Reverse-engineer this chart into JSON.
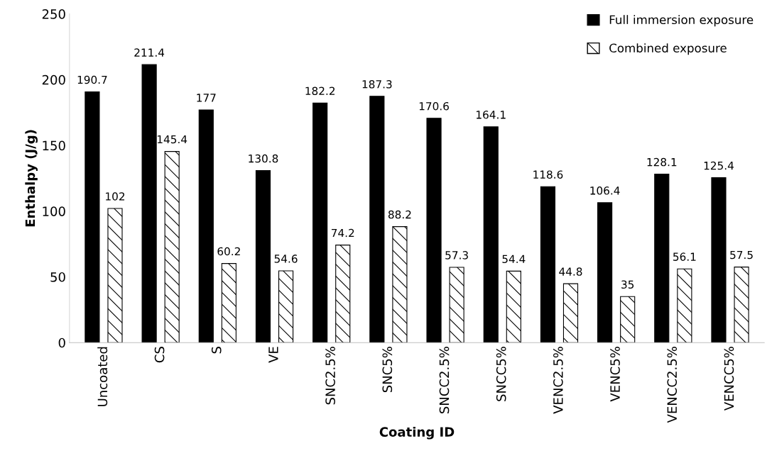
{
  "chart_data": {
    "type": "bar",
    "xlabel": "Coating ID",
    "ylabel": "Enthalpy (J/g)",
    "categories": [
      "Uncoated",
      "CS",
      "S",
      "VE",
      "SNC2.5%",
      "SNC5%",
      "SNCC2.5%",
      "SNCC5%",
      "VENC2.5%",
      "VENC5%",
      "VENCC2.5%",
      "VENCC5%"
    ],
    "series": [
      {
        "name": "Full immersion exposure",
        "color": "#000000",
        "values": [
          190.7,
          211.4,
          177,
          130.8,
          182.2,
          187.3,
          170.6,
          164.1,
          118.6,
          106.4,
          128.1,
          125.4
        ]
      },
      {
        "name": "Combined exposure",
        "color": "#000000",
        "values": [
          102,
          145.4,
          60.2,
          54.6,
          74.2,
          88.2,
          57.3,
          54.4,
          44.8,
          35,
          56.1,
          57.5
        ]
      }
    ],
    "ylim": [
      0,
      250
    ],
    "yticks": [
      0,
      50,
      100,
      150,
      200,
      250
    ],
    "grid": false,
    "legend": "top right",
    "data_labels": true
  }
}
